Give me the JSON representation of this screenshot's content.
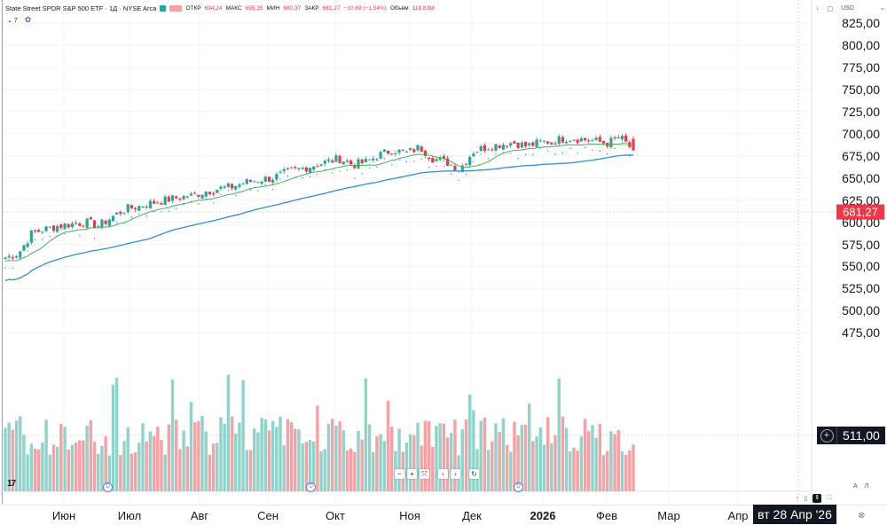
{
  "header": {
    "symbol_icon": "dollar-icon",
    "title": "State Street SPDR S&P 500 ETF · 1Д · NYSE Arca",
    "ohlc": [
      {
        "label": "ОТКР",
        "value": "694,24"
      },
      {
        "label": "МАКС",
        "value": "695,35"
      },
      {
        "label": "МИН",
        "value": "680,37"
      },
      {
        "label": "ЗАКР",
        "value": "681,27"
      }
    ],
    "change": "−10,69 (−1,54%)",
    "volume_label": "Объём",
    "volume_value": "118,83M",
    "indicators_count": "7",
    "currency": "USD"
  },
  "price_axis": {
    "ticks": [
      "825,00",
      "800,00",
      "775,00",
      "750,00",
      "725,00",
      "700,00",
      "675,00",
      "650,00",
      "625,00",
      "600,00",
      "575,00",
      "550,00",
      "525,00",
      "500,00",
      "475,00"
    ],
    "last_price": "681,27",
    "crosshair_price": "511,00"
  },
  "time_axis": {
    "months": [
      "Июн",
      "Июл",
      "Авг",
      "Сен",
      "Окт",
      "Ноя",
      "Дек",
      "2026",
      "Фев",
      "Мар",
      "Апр"
    ],
    "crosshair_date": "вт 28 Апр '26"
  },
  "bottom_controls": {
    "auto_label": "А",
    "log_label": "Л"
  },
  "colors": {
    "up": "#26a69a",
    "down": "#f23645",
    "vol_up": "#8fd3cb",
    "vol_down": "#f7a1a5",
    "ma_fast": "#4caf50",
    "ma_slow": "#2f8fd8",
    "grid": "#f0f3fa"
  },
  "chart_data": {
    "type": "candlestick",
    "title": "State Street SPDR S&P 500 ETF · 1Д · NYSE Arca",
    "ylabel": "USD",
    "ylim": [
      465,
      835
    ],
    "x_months": [
      "Июн",
      "Июл",
      "Авг",
      "Сен",
      "Окт",
      "Ноя",
      "Дек",
      "2026",
      "Фев"
    ],
    "close_series_approx": [
      560,
      565,
      588,
      592,
      596,
      598,
      600,
      596,
      606,
      615,
      618,
      622,
      625,
      628,
      630,
      635,
      638,
      640,
      645,
      648,
      650,
      656,
      660,
      664,
      668,
      672,
      665,
      668,
      676,
      682,
      678,
      685,
      672,
      668,
      660,
      680,
      685,
      688,
      690,
      686,
      690,
      692,
      695,
      694,
      692,
      689,
      696,
      681.27
    ],
    "last": {
      "open": 694.24,
      "high": 695.35,
      "low": 680.37,
      "close": 681.27,
      "change": -10.69,
      "change_pct": -1.54,
      "volume": "118,83M"
    },
    "series": [
      {
        "name": "MA fast",
        "color": "#4caf50"
      },
      {
        "name": "MA slow",
        "color": "#2f8fd8"
      },
      {
        "name": "Volume",
        "type": "bar"
      }
    ]
  }
}
